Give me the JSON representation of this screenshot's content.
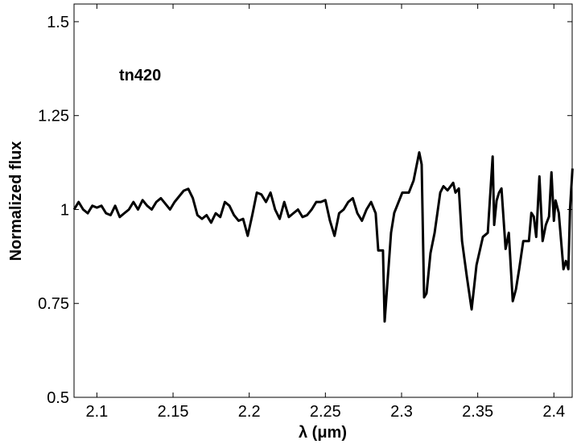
{
  "chart_data": {
    "type": "line",
    "annotation": "tn420",
    "x_label": "λ (μm)",
    "y_label": "Normalized flux",
    "xlim": [
      2.085,
      2.412
    ],
    "ylim": [
      0.5,
      1.547
    ],
    "xticks": [
      2.1,
      2.15,
      2.2,
      2.25,
      2.3,
      2.35,
      2.4
    ],
    "yticks": [
      0.5,
      0.75,
      1,
      1.25,
      1.5
    ],
    "grid": false,
    "series": [
      {
        "color": "#000000",
        "x": [
          2.085,
          2.088,
          2.091,
          2.094,
          2.097,
          2.1,
          2.103,
          2.106,
          2.109,
          2.112,
          2.115,
          2.118,
          2.121,
          2.124,
          2.127,
          2.13,
          2.133,
          2.136,
          2.139,
          2.142,
          2.145,
          2.148,
          2.151,
          2.154,
          2.157,
          2.16,
          2.163,
          2.166,
          2.169,
          2.172,
          2.175,
          2.178,
          2.181,
          2.184,
          2.187,
          2.19,
          2.193,
          2.196,
          2.199,
          2.202,
          2.205,
          2.208,
          2.211,
          2.214,
          2.217,
          2.22,
          2.223,
          2.226,
          2.229,
          2.232,
          2.235,
          2.238,
          2.241,
          2.244,
          2.247,
          2.25,
          2.253,
          2.256,
          2.259,
          2.262,
          2.265,
          2.268,
          2.271,
          2.274,
          2.277,
          2.28,
          2.283,
          2.2847,
          2.2878,
          2.2889,
          2.2931,
          2.2952,
          2.3005,
          2.3048,
          2.3079,
          2.3116,
          2.3132,
          2.3148,
          2.3164,
          2.319,
          2.3217,
          2.3254,
          2.3275,
          2.3302,
          2.3339,
          2.3354,
          2.3376,
          2.3397,
          2.3429,
          2.346,
          2.3492,
          2.3534,
          2.3566,
          2.3598,
          2.3608,
          2.3624,
          2.364,
          2.3656,
          2.3683,
          2.3704,
          2.373,
          2.3751,
          2.3772,
          2.3799,
          2.3815,
          2.3836,
          2.3852,
          2.3868,
          2.3884,
          2.3905,
          2.3926,
          2.3947,
          2.3968,
          2.3984,
          2.4,
          2.4011,
          2.4032,
          2.4063,
          2.4079,
          2.4095,
          2.4106,
          2.4122
        ],
        "values": [
          1.0,
          1.02,
          1.0,
          0.99,
          1.01,
          1.005,
          1.01,
          0.99,
          0.985,
          1.01,
          0.98,
          0.99,
          1.0,
          1.02,
          1.0,
          1.025,
          1.01,
          1.0,
          1.02,
          1.03,
          1.015,
          1.0,
          1.02,
          1.035,
          1.05,
          1.055,
          1.03,
          0.985,
          0.975,
          0.985,
          0.965,
          0.99,
          0.98,
          1.02,
          1.01,
          0.985,
          0.97,
          0.975,
          0.93,
          0.985,
          1.045,
          1.04,
          1.02,
          1.045,
          1.0,
          0.975,
          1.02,
          0.98,
          0.99,
          1.0,
          0.98,
          0.985,
          1.0,
          1.02,
          1.02,
          1.025,
          0.97,
          0.93,
          0.99,
          1.0,
          1.02,
          1.03,
          0.99,
          0.97,
          1.0,
          1.02,
          0.99,
          0.891,
          0.891,
          0.702,
          0.938,
          0.991,
          1.045,
          1.045,
          1.077,
          1.152,
          1.12,
          0.766,
          0.777,
          0.884,
          0.938,
          1.045,
          1.062,
          1.051,
          1.071,
          1.045,
          1.056,
          0.916,
          0.82,
          0.734,
          0.852,
          0.927,
          0.938,
          1.141,
          0.959,
          1.024,
          1.045,
          1.056,
          0.895,
          0.938,
          0.756,
          0.788,
          0.841,
          0.916,
          0.916,
          0.916,
          0.991,
          0.981,
          0.927,
          1.088,
          0.916,
          0.959,
          0.981,
          1.099,
          0.97,
          1.024,
          0.991,
          0.841,
          0.863,
          0.841,
          1.002,
          1.109
        ]
      }
    ]
  }
}
